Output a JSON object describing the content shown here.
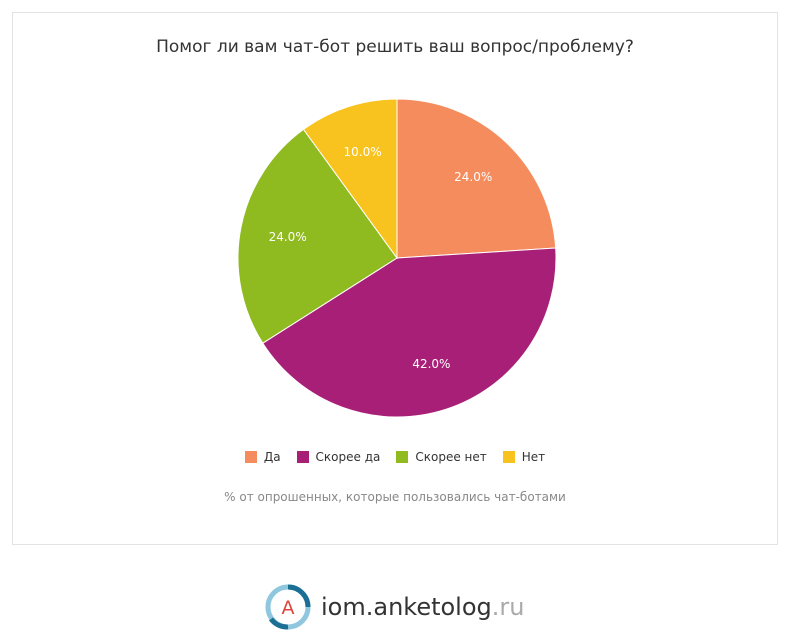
{
  "chart_data": {
    "type": "pie",
    "title": "Помог ли вам чат-бот решить ваш вопрос/проблему?",
    "categories": [
      "Да",
      "Скорее да",
      "Скорее нет",
      "Нет"
    ],
    "values": [
      24.0,
      42.0,
      24.0,
      10.0
    ],
    "labels": [
      "24.0%",
      "42.0%",
      "24.0%",
      "10.0%"
    ],
    "colors": [
      "#f58c5d",
      "#a81f78",
      "#8fba20",
      "#f9c31f"
    ],
    "start_angle_deg": 0,
    "direction": "clockwise",
    "legend_position": "bottom",
    "footnote": "% от опрошенных, которые пользовались чат-ботами"
  },
  "branding": {
    "logo_letter": "A",
    "site_name": "iom.anketolog",
    "site_tld": ".ru"
  }
}
